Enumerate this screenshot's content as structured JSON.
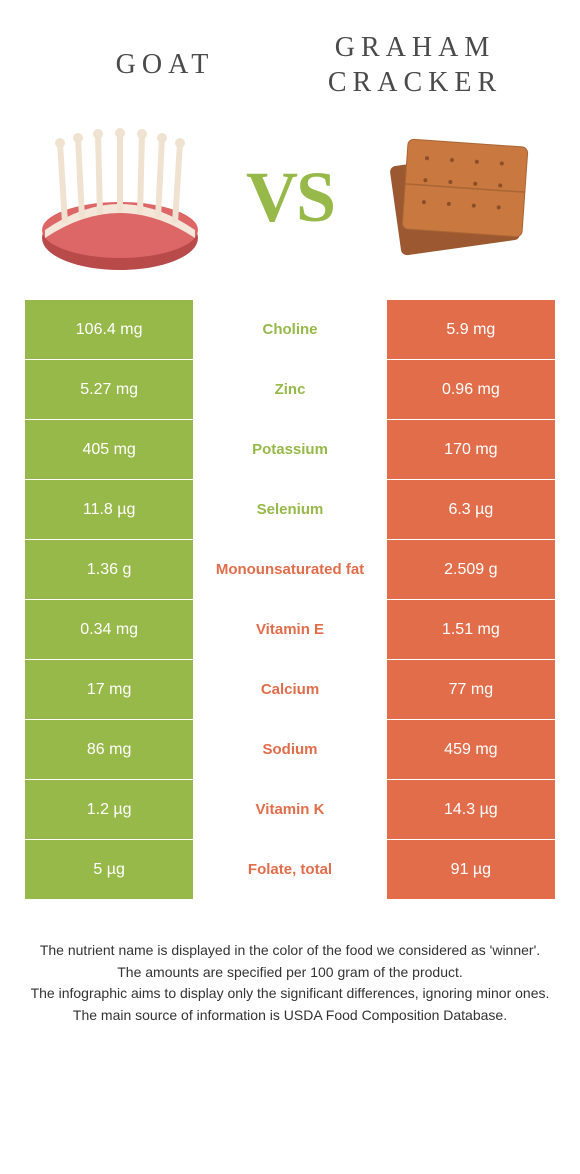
{
  "colors": {
    "green": "#97b94a",
    "orange": "#e26d4a",
    "title_gray": "#4a4a4a",
    "footer_text": "#333333",
    "white": "#ffffff",
    "meat_red": "#b84a4a",
    "meat_fat": "#f4e6d9",
    "bone": "#f0e2d0",
    "cracker_main": "#c97840",
    "cracker_dark": "#9c5830"
  },
  "header": {
    "left_title": "GOAT",
    "right_title_line1": "GRAHAM",
    "right_title_line2": "CRACKER",
    "vs_text": "VS"
  },
  "rows": [
    {
      "left": "106.4 mg",
      "label": "Choline",
      "right": "5.9 mg",
      "winner": "left"
    },
    {
      "left": "5.27 mg",
      "label": "Zinc",
      "right": "0.96 mg",
      "winner": "left"
    },
    {
      "left": "405 mg",
      "label": "Potassium",
      "right": "170 mg",
      "winner": "left"
    },
    {
      "left": "11.8 µg",
      "label": "Selenium",
      "right": "6.3 µg",
      "winner": "left"
    },
    {
      "left": "1.36 g",
      "label": "Monounsaturated fat",
      "right": "2.509 g",
      "winner": "right"
    },
    {
      "left": "0.34 mg",
      "label": "Vitamin E",
      "right": "1.51 mg",
      "winner": "right"
    },
    {
      "left": "17 mg",
      "label": "Calcium",
      "right": "77 mg",
      "winner": "right"
    },
    {
      "left": "86 mg",
      "label": "Sodium",
      "right": "459 mg",
      "winner": "right"
    },
    {
      "left": "1.2 µg",
      "label": "Vitamin K",
      "right": "14.3 µg",
      "winner": "right"
    },
    {
      "left": "5 µg",
      "label": "Folate, total",
      "right": "91 µg",
      "winner": "right"
    }
  ],
  "footer": {
    "line1": "The nutrient name is displayed in the color of the food we considered as 'winner'.",
    "line2": "The amounts are specified per 100 gram of the product.",
    "line3": "The infographic aims to display only the significant differences, ignoring minor ones.",
    "line4": "The main source of information is USDA Food Composition Database."
  }
}
